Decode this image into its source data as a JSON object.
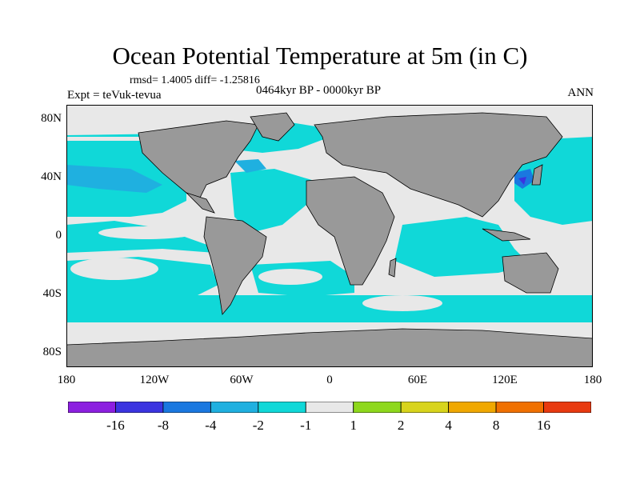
{
  "title": "Ocean Potential Temperature at 5m (in C)",
  "stats": "rmsd= 1.4005 diff= -1.25816",
  "experiment": "Expt = teVuk-tevua",
  "period": "0464kyr BP - 0000kyr BP",
  "season": "ANN",
  "map": {
    "projection": "cylindrical-equidistant",
    "lat_range": [
      -90,
      90
    ],
    "lon_range": [
      -180,
      180
    ],
    "y_ticks": [
      "80N",
      "40N",
      "0",
      "40S",
      "80S"
    ],
    "x_ticks": [
      "180",
      "120W",
      "60W",
      "0",
      "60E",
      "120E",
      "180"
    ],
    "land_color": "#999999",
    "coastline_color": "#000000"
  },
  "colorbar": {
    "boundaries": [
      "-16",
      "-8",
      "-4",
      "-2",
      "-1",
      "1",
      "2",
      "4",
      "8",
      "16"
    ],
    "colors": [
      "#8c1fe0",
      "#3b34e0",
      "#1a78e0",
      "#1fb0e0",
      "#10d8d8",
      "#e8e8e8",
      "#8ed81c",
      "#d8d41c",
      "#f0a800",
      "#f07000",
      "#e83a10"
    ]
  }
}
